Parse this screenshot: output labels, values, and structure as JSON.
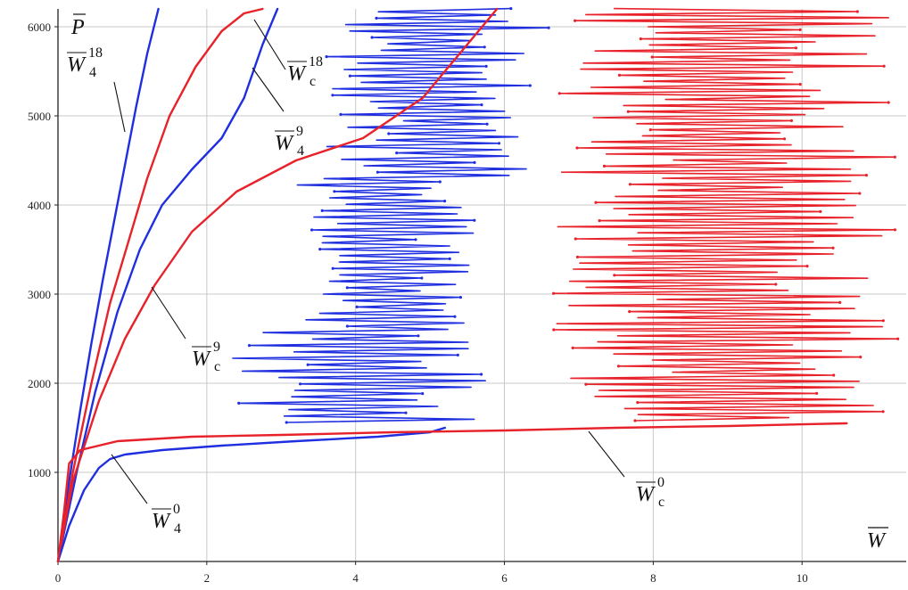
{
  "chart_data": {
    "type": "line",
    "xlabel": "W",
    "ylabel": "P",
    "xlim": [
      0,
      11.4
    ],
    "ylim": [
      0,
      6200
    ],
    "grid": true,
    "x_ticks": [
      0,
      2,
      4,
      6,
      8,
      10
    ],
    "y_ticks": [
      1000,
      2000,
      3000,
      4000,
      5000,
      6000
    ],
    "colors": {
      "blue": "#1f2fe0",
      "red": "#e8222a",
      "grid": "#c8c8c8"
    },
    "series": [
      {
        "color": "blue",
        "x": [
          0,
          0.15,
          0.3,
          0.45,
          0.6,
          0.75,
          0.9,
          1.05,
          1.2,
          1.35
        ],
        "y": [
          0,
          900,
          1700,
          2450,
          3150,
          3800,
          4450,
          5100,
          5700,
          6200
        ]
      },
      {
        "color": "blue",
        "x": [
          0,
          0.25,
          0.5,
          0.8,
          1.1,
          1.4,
          1.8,
          2.2,
          2.5,
          2.75,
          2.95
        ],
        "y": [
          0,
          1000,
          1900,
          2800,
          3500,
          4000,
          4400,
          4750,
          5200,
          5800,
          6200
        ]
      },
      {
        "color": "red",
        "x": [
          0,
          0.2,
          0.45,
          0.7,
          0.95,
          1.2,
          1.5,
          1.85,
          2.2,
          2.5,
          2.75
        ],
        "y": [
          0,
          1000,
          2000,
          2900,
          3600,
          4300,
          5000,
          5550,
          5950,
          6150,
          6200
        ]
      },
      {
        "color": "red",
        "x": [
          0,
          0.2,
          0.55,
          0.9,
          1.3,
          1.8,
          2.4,
          3.2,
          4.1,
          4.9,
          5.5,
          5.9
        ],
        "y": [
          0,
          900,
          1800,
          2500,
          3100,
          3700,
          4150,
          4500,
          4750,
          5200,
          5800,
          6200
        ]
      },
      {
        "color": "blue",
        "x": [
          0,
          0.15,
          0.35,
          0.55,
          0.7,
          0.9,
          1.4,
          2.2,
          3.2,
          4.3,
          5.0,
          5.2
        ],
        "y": [
          0,
          400,
          800,
          1050,
          1150,
          1200,
          1250,
          1300,
          1350,
          1400,
          1450,
          1500
        ]
      },
      {
        "color": "red",
        "x": [
          0,
          0.08,
          0.15,
          0.3,
          0.8,
          1.8,
          3.0,
          4.5,
          6.0,
          7.5,
          9.0,
          10.6
        ],
        "y": [
          0,
          550,
          1100,
          1250,
          1350,
          1400,
          1420,
          1450,
          1470,
          1500,
          1520,
          1550
        ]
      }
    ],
    "annotations": [
      {
        "base": "W",
        "sub": "4",
        "sup": "18"
      },
      {
        "base": "W",
        "sub": "c",
        "sup": "18"
      },
      {
        "base": "W",
        "sub": "4",
        "sup": "9"
      },
      {
        "base": "W",
        "sub": "c",
        "sup": "9"
      },
      {
        "base": "W",
        "sub": "4",
        "sup": "0"
      },
      {
        "base": "W",
        "sub": "c",
        "sup": "0"
      }
    ]
  }
}
